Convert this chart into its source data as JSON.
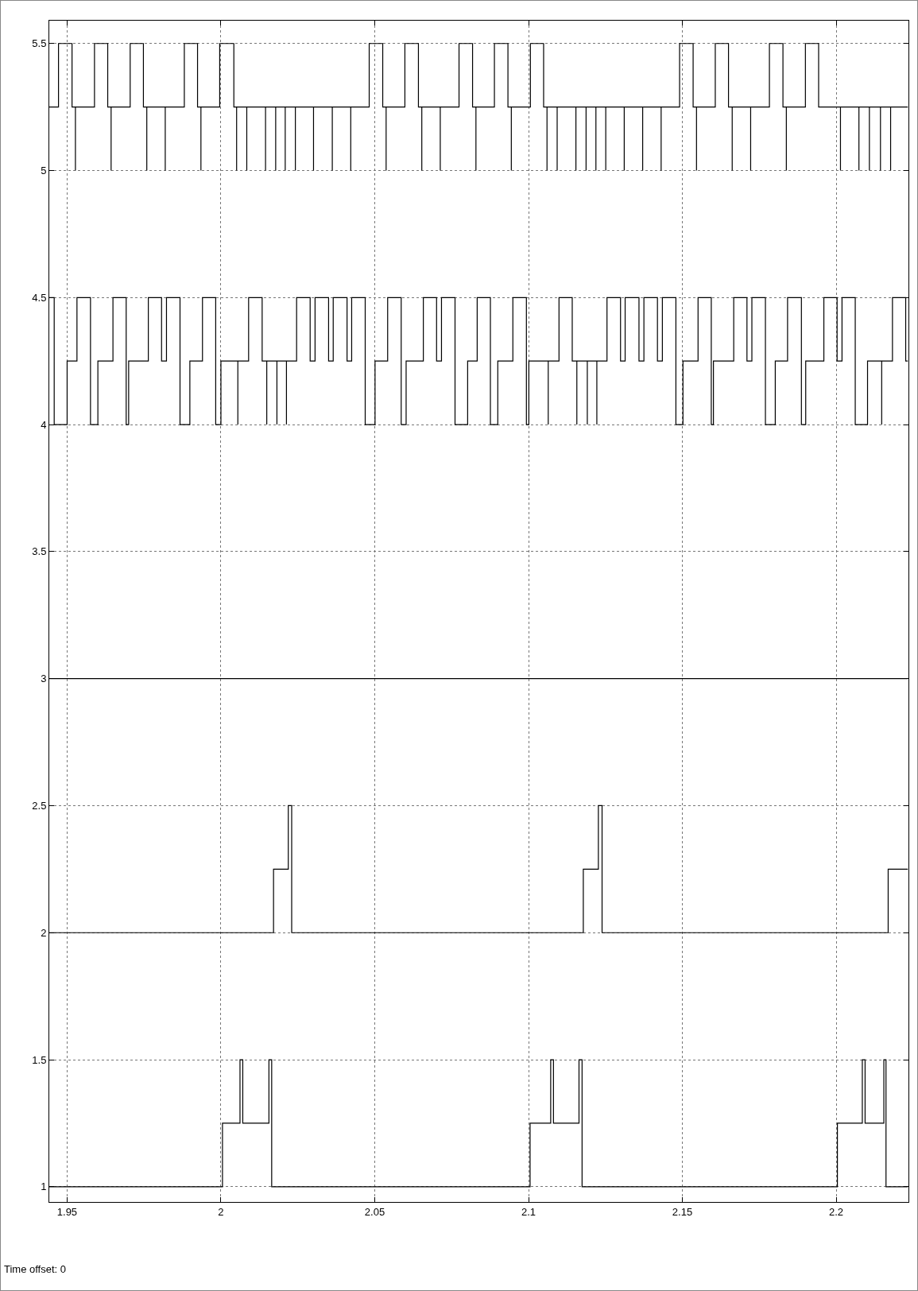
{
  "chart_data": {
    "type": "step",
    "xlim": [
      1.9442,
      2.2235
    ],
    "ylim": [
      0.94,
      5.59
    ],
    "xticks": [
      1.95,
      2,
      2.05,
      2.1,
      2.15,
      2.2
    ],
    "yticks": [
      1,
      1.5,
      2,
      2.5,
      3,
      3.5,
      4,
      4.5,
      5,
      5.5
    ],
    "grid": true,
    "marker": "none",
    "line_style": "solid",
    "annotations": [
      "Time offset: 0"
    ],
    "series": [
      {
        "color": "#000000",
        "x": [
          1.9442,
          1.9472,
          1.9516,
          1.9527,
          1.9527,
          1.9589,
          1.9632,
          1.9643,
          1.9643,
          1.9705,
          1.9748,
          1.9759,
          1.9759,
          1.9819,
          1.9819,
          1.9881,
          1.9924,
          1.9935,
          1.9935,
          1.9996,
          2.0042,
          2.0051,
          2.0051,
          2.0084,
          2.0084,
          2.0145,
          2.0145,
          2.0178,
          2.0178,
          2.0209,
          2.0209,
          2.0242,
          2.0242,
          2.0301,
          2.0301,
          2.0362,
          2.0362,
          2.0422,
          2.0422,
          2.0482,
          2.0526,
          2.0537,
          2.0537,
          2.0598,
          2.0642,
          2.0653,
          2.0653,
          2.0713,
          2.0713,
          2.0774,
          2.0818,
          2.0829,
          2.0829,
          2.0889,
          2.0933,
          2.0944,
          2.0944,
          2.1006,
          2.1049,
          2.106,
          2.106,
          2.1093,
          2.1093,
          2.1154,
          2.1154,
          2.1187,
          2.1187,
          2.1219,
          2.1219,
          2.1251,
          2.1251,
          2.1311,
          2.1311,
          2.1371,
          2.1371,
          2.1431,
          2.1431,
          2.1491,
          2.1535,
          2.1546,
          2.1546,
          2.1607,
          2.165,
          2.1662,
          2.1662,
          2.1722,
          2.1722,
          2.1783,
          2.1827,
          2.1838,
          2.1838,
          2.19,
          2.1943,
          2.2014,
          2.2014,
          2.2074,
          2.2074,
          2.2108,
          2.2108,
          2.2144,
          2.2144,
          2.2177,
          2.2177,
          2.2233
        ],
        "values": [
          5.25,
          5.5,
          5.25,
          5,
          5.25,
          5.5,
          5.25,
          5,
          5.25,
          5.5,
          5.25,
          5,
          5.25,
          5,
          5.25,
          5.5,
          5.25,
          5,
          5.25,
          5.5,
          5.25,
          5,
          5.25,
          5,
          5.25,
          5,
          5.25,
          5,
          5.25,
          5,
          5.25,
          5,
          5.25,
          5,
          5.25,
          5,
          5.25,
          5,
          5.25,
          5.5,
          5.25,
          5,
          5.25,
          5.5,
          5.25,
          5,
          5.25,
          5,
          5.25,
          5.5,
          5.25,
          5,
          5.25,
          5.5,
          5.25,
          5,
          5.25,
          5.5,
          5.25,
          5,
          5.25,
          5,
          5.25,
          5,
          5.25,
          5,
          5.25,
          5,
          5.25,
          5,
          5.25,
          5,
          5.25,
          5,
          5.25,
          5,
          5.25,
          5.5,
          5.25,
          5,
          5.25,
          5.5,
          5.25,
          5,
          5.25,
          5,
          5.25,
          5.5,
          5.25,
          5,
          5.25,
          5.5,
          5.25,
          5,
          5.25,
          5,
          5.25,
          5,
          5.25,
          5,
          5.25,
          5,
          5.25,
          5.25
        ]
      },
      {
        "color": "#000000",
        "x": [
          1.9442,
          1.9458,
          1.95,
          1.9532,
          1.9576,
          1.96,
          1.9649,
          1.9692,
          1.97,
          1.9764,
          1.9807,
          1.9823,
          1.9867,
          1.9899,
          1.994,
          1.9983,
          2.0,
          2.0055,
          2.0055,
          2.009,
          2.0134,
          2.0149,
          2.0149,
          2.0182,
          2.0182,
          2.0213,
          2.0213,
          2.0246,
          2.029,
          2.0306,
          2.035,
          2.0365,
          2.041,
          2.0425,
          2.0469,
          2.0501,
          2.0542,
          2.0586,
          2.0602,
          2.0658,
          2.0701,
          2.0717,
          2.0761,
          2.0802,
          2.0833,
          2.0876,
          2.09,
          2.0949,
          2.0993,
          2.1001,
          2.1064,
          2.1064,
          2.1099,
          2.1142,
          2.1157,
          2.1157,
          2.1191,
          2.1191,
          2.1222,
          2.1222,
          2.1255,
          2.1299,
          2.1314,
          2.1359,
          2.1375,
          2.1419,
          2.1435,
          2.1479,
          2.1502,
          2.1551,
          2.1594,
          2.1601,
          2.1667,
          2.171,
          2.1726,
          2.177,
          2.1802,
          2.1842,
          2.1887,
          2.1901,
          2.196,
          2.2003,
          2.2019,
          2.2062,
          2.2102,
          2.2148,
          2.2148,
          2.2183,
          2.2226,
          2.2233
        ],
        "values": [
          4.5,
          4,
          4.25,
          4.5,
          4,
          4.25,
          4.5,
          4,
          4.25,
          4.5,
          4.25,
          4.5,
          4,
          4.25,
          4.5,
          4,
          4.25,
          4,
          4.25,
          4.5,
          4.25,
          4,
          4.25,
          4,
          4.25,
          4,
          4.25,
          4.5,
          4.25,
          4.5,
          4.25,
          4.5,
          4.25,
          4.5,
          4,
          4.25,
          4.5,
          4,
          4.25,
          4.5,
          4.25,
          4.5,
          4,
          4.25,
          4.5,
          4,
          4.25,
          4.5,
          4,
          4.25,
          4,
          4.25,
          4.5,
          4.25,
          4,
          4.25,
          4,
          4.25,
          4,
          4.25,
          4.5,
          4.25,
          4.5,
          4.25,
          4.5,
          4.25,
          4.5,
          4,
          4.25,
          4.5,
          4,
          4.25,
          4.5,
          4.25,
          4.5,
          4,
          4.25,
          4.5,
          4,
          4.25,
          4.5,
          4.25,
          4.5,
          4,
          4.25,
          4,
          4.25,
          4.5,
          4.25,
          4.25
        ]
      },
      {
        "color": "#000000",
        "x": [
          1.9442,
          2.2233
        ],
        "values": [
          3,
          3
        ]
      },
      {
        "color": "#000000",
        "x": [
          1.9442,
          2.0171,
          2.0219,
          2.023,
          2.1178,
          2.1227,
          2.1239,
          2.2169,
          2.2233
        ],
        "values": [
          2,
          2.25,
          2.5,
          2,
          2.25,
          2.5,
          2,
          2.25,
          2.25
        ]
      },
      {
        "color": "#000000",
        "x": [
          1.9442,
          2.0005,
          2.0062,
          2.0071,
          2.0156,
          2.0165,
          2.1005,
          2.1072,
          2.1081,
          2.1164,
          2.1174,
          2.2004,
          2.2085,
          2.2094,
          2.2155,
          2.2162,
          2.2233
        ],
        "values": [
          1,
          1.25,
          1.5,
          1.25,
          1.5,
          1,
          1.25,
          1.5,
          1.25,
          1.5,
          1,
          1.25,
          1.5,
          1.25,
          1.5,
          1,
          1
        ]
      }
    ]
  }
}
